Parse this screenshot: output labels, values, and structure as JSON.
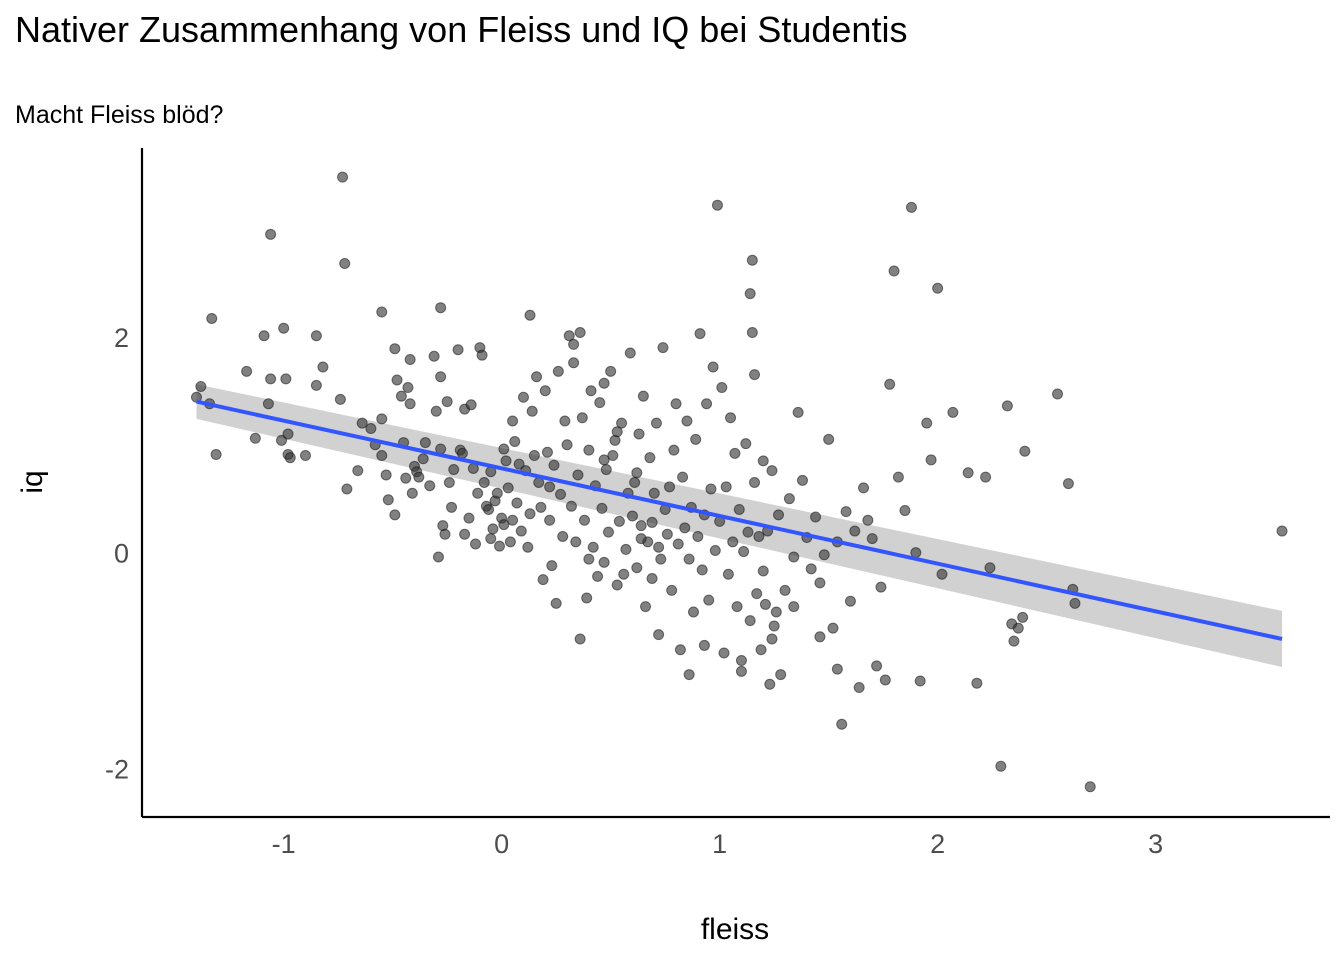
{
  "chart_data": {
    "type": "scatter",
    "title": "Nativer Zusammenhang von Fleiss und IQ bei Studentis",
    "subtitle": "Macht Fleiss blöd?",
    "xlabel": "fleiss",
    "ylabel": "iq",
    "xlim": [
      -1.65,
      3.8
    ],
    "ylim": [
      -2.45,
      3.75
    ],
    "x_ticks": [
      -1,
      0,
      1,
      2,
      3
    ],
    "y_ticks": [
      -2,
      0,
      2
    ],
    "x_tick_labels": [
      "-1",
      "0",
      "1",
      "2",
      "3"
    ],
    "y_tick_labels": [
      "-2",
      "0",
      "2"
    ],
    "grid": false,
    "point_color": "#333333",
    "regression": {
      "type": "linear",
      "color": "#3355ff",
      "band_color": "#cccccc",
      "x_range": [
        -1.4,
        3.58
      ],
      "y_start": 1.4,
      "y_end": -0.8,
      "band_start": [
        1.24,
        1.56
      ],
      "band_end": [
        -1.06,
        -0.54
      ]
    },
    "points": [
      [
        -0.73,
        3.48
      ],
      [
        -1.06,
        2.95
      ],
      [
        -0.72,
        2.68
      ],
      [
        -1.33,
        2.17
      ],
      [
        -1.0,
        2.08
      ],
      [
        -1.09,
        2.01
      ],
      [
        -0.85,
        2.01
      ],
      [
        -0.55,
        2.23
      ],
      [
        -0.28,
        2.27
      ],
      [
        0.13,
        2.2
      ],
      [
        -1.17,
        1.68
      ],
      [
        -1.06,
        1.61
      ],
      [
        -0.99,
        1.61
      ],
      [
        -0.82,
        1.72
      ],
      [
        -0.85,
        1.55
      ],
      [
        -0.74,
        1.42
      ],
      [
        -1.4,
        1.44
      ],
      [
        -1.38,
        1.54
      ],
      [
        -1.34,
        1.38
      ],
      [
        -1.07,
        1.38
      ],
      [
        -1.31,
        0.91
      ],
      [
        -1.13,
        1.06
      ],
      [
        -1.01,
        1.04
      ],
      [
        -0.98,
        1.1
      ],
      [
        -0.98,
        0.91
      ],
      [
        -0.97,
        0.88
      ],
      [
        -0.9,
        0.9
      ],
      [
        -0.71,
        0.59
      ],
      [
        -0.66,
        0.76
      ],
      [
        -0.64,
        1.2
      ],
      [
        -0.6,
        1.15
      ],
      [
        -0.58,
        1.0
      ],
      [
        -0.55,
        1.24
      ],
      [
        -0.55,
        0.9
      ],
      [
        -0.53,
        0.72
      ],
      [
        -0.52,
        0.49
      ],
      [
        -0.49,
        0.35
      ],
      [
        -0.49,
        1.89
      ],
      [
        -0.48,
        1.6
      ],
      [
        -0.46,
        1.45
      ],
      [
        -0.45,
        1.02
      ],
      [
        -0.44,
        0.69
      ],
      [
        -0.43,
        1.53
      ],
      [
        -0.42,
        1.79
      ],
      [
        -0.42,
        1.38
      ],
      [
        -0.41,
        0.55
      ],
      [
        -0.4,
        0.8
      ],
      [
        -0.39,
        0.75
      ],
      [
        -0.38,
        0.7
      ],
      [
        -0.36,
        0.87
      ],
      [
        -0.35,
        1.02
      ],
      [
        -0.33,
        0.62
      ],
      [
        -0.31,
        1.82
      ],
      [
        -0.3,
        1.31
      ],
      [
        -0.29,
        -0.04
      ],
      [
        -0.28,
        1.63
      ],
      [
        -0.28,
        0.96
      ],
      [
        -0.27,
        0.25
      ],
      [
        -0.26,
        0.17
      ],
      [
        -0.25,
        1.4
      ],
      [
        -0.24,
        0.65
      ],
      [
        -0.23,
        0.42
      ],
      [
        -0.22,
        0.77
      ],
      [
        -0.2,
        1.88
      ],
      [
        -0.19,
        0.95
      ],
      [
        -0.18,
        0.92
      ],
      [
        -0.17,
        1.33
      ],
      [
        -0.17,
        0.17
      ],
      [
        -0.15,
        0.32
      ],
      [
        -0.14,
        1.37
      ],
      [
        -0.13,
        0.78
      ],
      [
        -0.12,
        0.08
      ],
      [
        -0.11,
        0.55
      ],
      [
        -0.1,
        1.9
      ],
      [
        -0.09,
        1.83
      ],
      [
        -0.08,
        0.65
      ],
      [
        -0.07,
        0.43
      ],
      [
        -0.06,
        0.4
      ],
      [
        -0.05,
        0.75
      ],
      [
        -0.04,
        0.22
      ],
      [
        -0.03,
        0.48
      ],
      [
        -0.02,
        0.55
      ],
      [
        -0.01,
        0.06
      ],
      [
        0.0,
        0.32
      ],
      [
        0.01,
        0.96
      ],
      [
        0.02,
        0.85
      ],
      [
        0.03,
        0.6
      ],
      [
        0.04,
        0.1
      ],
      [
        0.05,
        0.3
      ],
      [
        0.05,
        1.22
      ],
      [
        0.06,
        1.03
      ],
      [
        0.07,
        0.46
      ],
      [
        0.08,
        0.82
      ],
      [
        0.09,
        0.2
      ],
      [
        0.1,
        1.44
      ],
      [
        0.11,
        0.76
      ],
      [
        0.12,
        0.05
      ],
      [
        0.13,
        0.36
      ],
      [
        0.14,
        1.31
      ],
      [
        0.15,
        0.9
      ],
      [
        0.16,
        1.63
      ],
      [
        0.17,
        0.65
      ],
      [
        0.18,
        0.42
      ],
      [
        0.19,
        -0.25
      ],
      [
        0.2,
        1.5
      ],
      [
        0.21,
        0.93
      ],
      [
        0.22,
        0.3
      ],
      [
        0.23,
        -0.12
      ],
      [
        0.24,
        0.81
      ],
      [
        0.25,
        -0.47
      ],
      [
        0.26,
        1.68
      ],
      [
        0.27,
        0.54
      ],
      [
        0.28,
        0.15
      ],
      [
        0.29,
        1.22
      ],
      [
        0.3,
        1.0
      ],
      [
        0.31,
        2.01
      ],
      [
        0.32,
        0.43
      ],
      [
        0.33,
        1.76
      ],
      [
        0.34,
        0.1
      ],
      [
        0.35,
        0.72
      ],
      [
        0.36,
        -0.8
      ],
      [
        0.37,
        1.25
      ],
      [
        0.38,
        0.3
      ],
      [
        0.39,
        -0.42
      ],
      [
        0.4,
        0.95
      ],
      [
        0.41,
        1.5
      ],
      [
        0.42,
        0.05
      ],
      [
        0.43,
        0.62
      ],
      [
        0.44,
        -0.22
      ],
      [
        0.45,
        1.39
      ],
      [
        0.46,
        0.41
      ],
      [
        0.47,
        -0.09
      ],
      [
        0.48,
        0.77
      ],
      [
        0.49,
        0.19
      ],
      [
        0.5,
        1.68
      ],
      [
        0.51,
        0.9
      ],
      [
        0.52,
        1.04
      ],
      [
        0.53,
        -0.3
      ],
      [
        0.54,
        0.29
      ],
      [
        0.55,
        1.2
      ],
      [
        0.56,
        -0.2
      ],
      [
        0.57,
        0.03
      ],
      [
        0.58,
        0.55
      ],
      [
        0.59,
        1.85
      ],
      [
        0.6,
        0.34
      ],
      [
        0.61,
        0.65
      ],
      [
        0.62,
        -0.14
      ],
      [
        0.63,
        1.1
      ],
      [
        0.64,
        0.25
      ],
      [
        0.65,
        1.45
      ],
      [
        0.66,
        -0.5
      ],
      [
        0.67,
        0.1
      ],
      [
        0.68,
        0.88
      ],
      [
        0.69,
        -0.24
      ],
      [
        0.7,
        0.55
      ],
      [
        0.71,
        1.2
      ],
      [
        0.72,
        0.05
      ],
      [
        0.73,
        -0.06
      ],
      [
        0.74,
        1.9
      ],
      [
        0.75,
        0.4
      ],
      [
        0.76,
        0.17
      ],
      [
        0.77,
        0.61
      ],
      [
        0.78,
        -0.35
      ],
      [
        0.79,
        0.95
      ],
      [
        0.8,
        1.38
      ],
      [
        0.81,
        0.08
      ],
      [
        0.82,
        -0.9
      ],
      [
        0.83,
        0.7
      ],
      [
        0.84,
        0.23
      ],
      [
        0.85,
        1.22
      ],
      [
        0.86,
        -0.06
      ],
      [
        0.87,
        0.42
      ],
      [
        0.88,
        -0.55
      ],
      [
        0.89,
        1.05
      ],
      [
        0.9,
        0.15
      ],
      [
        0.91,
        2.03
      ],
      [
        0.92,
        -0.16
      ],
      [
        0.93,
        0.35
      ],
      [
        0.94,
        1.38
      ],
      [
        0.95,
        -0.44
      ],
      [
        0.96,
        0.59
      ],
      [
        0.97,
        1.72
      ],
      [
        0.98,
        0.02
      ],
      [
        0.99,
        3.22
      ],
      [
        1.0,
        0.29
      ],
      [
        1.01,
        1.53
      ],
      [
        1.02,
        -0.93
      ],
      [
        1.03,
        0.61
      ],
      [
        1.04,
        -0.2
      ],
      [
        1.05,
        1.25
      ],
      [
        1.06,
        0.1
      ],
      [
        1.07,
        0.92
      ],
      [
        1.08,
        -0.5
      ],
      [
        1.09,
        0.4
      ],
      [
        1.1,
        -1.1
      ],
      [
        1.11,
        0.01
      ],
      [
        1.12,
        1.01
      ],
      [
        1.13,
        0.19
      ],
      [
        1.14,
        -0.63
      ],
      [
        1.15,
        2.71
      ],
      [
        1.16,
        0.65
      ],
      [
        1.17,
        -0.38
      ],
      [
        1.18,
        0.15
      ],
      [
        1.19,
        -0.9
      ],
      [
        1.2,
        0.85
      ],
      [
        1.21,
        -0.48
      ],
      [
        1.22,
        0.2
      ],
      [
        1.23,
        -1.22
      ],
      [
        1.24,
        0.76
      ],
      [
        1.25,
        -0.68
      ],
      [
        1.26,
        -0.55
      ],
      [
        1.27,
        0.35
      ],
      [
        1.28,
        -1.13
      ],
      [
        1.3,
        -0.35
      ],
      [
        1.32,
        0.5
      ],
      [
        1.34,
        -0.5
      ],
      [
        1.36,
        1.3
      ],
      [
        1.38,
        0.67
      ],
      [
        1.4,
        0.14
      ],
      [
        1.42,
        -0.15
      ],
      [
        1.44,
        0.33
      ],
      [
        1.46,
        -0.28
      ],
      [
        1.48,
        -0.02
      ],
      [
        1.5,
        1.05
      ],
      [
        1.52,
        -0.7
      ],
      [
        1.54,
        0.1
      ],
      [
        1.56,
        -1.59
      ],
      [
        1.58,
        0.38
      ],
      [
        1.6,
        -0.45
      ],
      [
        1.62,
        0.2
      ],
      [
        1.64,
        -1.25
      ],
      [
        1.66,
        0.6
      ],
      [
        1.68,
        0.3
      ],
      [
        1.7,
        0.13
      ],
      [
        1.72,
        -1.05
      ],
      [
        1.74,
        -0.32
      ],
      [
        1.76,
        -1.18
      ],
      [
        1.78,
        1.56
      ],
      [
        1.8,
        2.61
      ],
      [
        1.82,
        0.7
      ],
      [
        1.85,
        0.39
      ],
      [
        1.88,
        3.2
      ],
      [
        1.9,
        0.0
      ],
      [
        1.92,
        -1.19
      ],
      [
        1.95,
        1.2
      ],
      [
        1.97,
        0.86
      ],
      [
        2.0,
        2.45
      ],
      [
        2.02,
        -0.2
      ],
      [
        2.07,
        1.3
      ],
      [
        2.14,
        0.74
      ],
      [
        2.18,
        -1.21
      ],
      [
        2.22,
        0.7
      ],
      [
        2.24,
        -0.14
      ],
      [
        2.29,
        -1.98
      ],
      [
        2.32,
        1.36
      ],
      [
        2.34,
        -0.66
      ],
      [
        2.35,
        -0.82
      ],
      [
        2.37,
        -0.7
      ],
      [
        2.39,
        -0.6
      ],
      [
        2.4,
        0.94
      ],
      [
        2.55,
        1.47
      ],
      [
        2.6,
        0.64
      ],
      [
        2.62,
        -0.34
      ],
      [
        2.63,
        -0.47
      ],
      [
        2.7,
        -2.17
      ],
      [
        3.58,
        0.2
      ],
      [
        1.14,
        2.4
      ],
      [
        1.15,
        2.04
      ],
      [
        1.16,
        1.65
      ],
      [
        0.36,
        2.04
      ],
      [
        0.33,
        1.93
      ],
      [
        0.47,
        1.57
      ],
      [
        0.53,
        1.12
      ],
      [
        0.47,
        0.86
      ],
      [
        0.62,
        0.74
      ],
      [
        0.64,
        0.13
      ],
      [
        0.69,
        0.28
      ],
      [
        0.72,
        -0.76
      ],
      [
        0.86,
        -1.13
      ],
      [
        0.93,
        -0.86
      ],
      [
        1.1,
        -1.0
      ],
      [
        1.24,
        -0.8
      ],
      [
        1.46,
        -0.78
      ],
      [
        1.54,
        -1.08
      ],
      [
        1.2,
        -0.17
      ],
      [
        1.34,
        -0.04
      ],
      [
        0.01,
        0.26
      ],
      [
        -0.05,
        0.13
      ],
      [
        0.22,
        0.61
      ],
      [
        0.4,
        -0.06
      ]
    ]
  }
}
